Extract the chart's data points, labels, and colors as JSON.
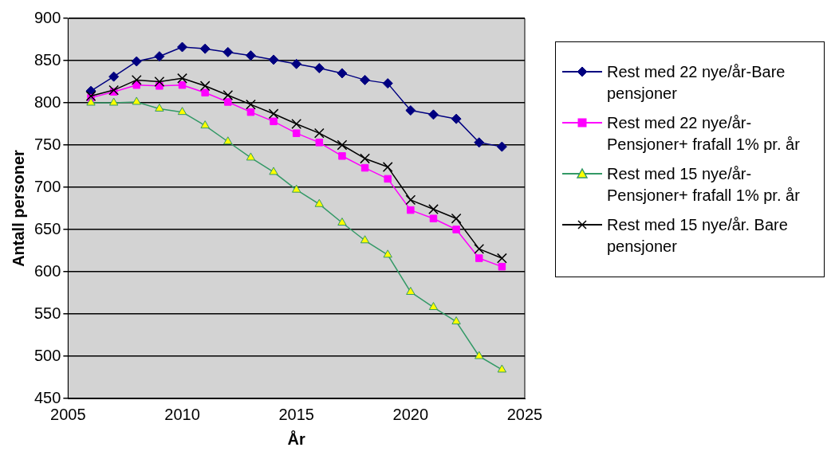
{
  "chart_data": {
    "type": "line",
    "xlabel": "År",
    "ylabel": "Antall personer",
    "x": [
      2006,
      2007,
      2008,
      2009,
      2010,
      2011,
      2012,
      2013,
      2014,
      2015,
      2016,
      2017,
      2018,
      2019,
      2020,
      2021,
      2022,
      2023,
      2024
    ],
    "xlim": [
      2005,
      2025
    ],
    "xticks": [
      2005,
      2010,
      2015,
      2020,
      2025
    ],
    "ylim": [
      450,
      900
    ],
    "yticks": [
      450,
      500,
      550,
      600,
      650,
      700,
      750,
      800,
      850,
      900
    ],
    "grid": "y",
    "legend": "right",
    "series": [
      {
        "name": "Rest med 22 nye/år-Bare pensjoner",
        "color": "#000080",
        "marker": "diamond",
        "values": [
          814,
          831,
          849,
          855,
          866,
          864,
          860,
          856,
          851,
          846,
          841,
          835,
          827,
          823,
          791,
          786,
          781,
          753,
          748
        ]
      },
      {
        "name": "Rest med 22 nye/år-Pensjoner+ frafall 1% pr. år",
        "color": "#ff00ff",
        "marker": "square",
        "values": [
          806,
          813,
          821,
          820,
          821,
          812,
          801,
          789,
          778,
          764,
          753,
          737,
          723,
          710,
          673,
          663,
          650,
          616,
          606
        ]
      },
      {
        "name": "Rest med 15 nye/år-Pensjoner+ frafall 1% pr. år",
        "color": "#339966",
        "marker": "triangle",
        "values": [
          800,
          800,
          801,
          793,
          789,
          773,
          754,
          735,
          718,
          697,
          680,
          658,
          637,
          620,
          576,
          558,
          541,
          500,
          484
        ]
      },
      {
        "name": "Rest med 15 nye/år. Bare pensjoner",
        "color": "#000000",
        "marker": "cross",
        "values": [
          808,
          815,
          827,
          825,
          829,
          820,
          809,
          798,
          787,
          775,
          764,
          750,
          734,
          724,
          685,
          674,
          663,
          627,
          616
        ]
      }
    ]
  }
}
